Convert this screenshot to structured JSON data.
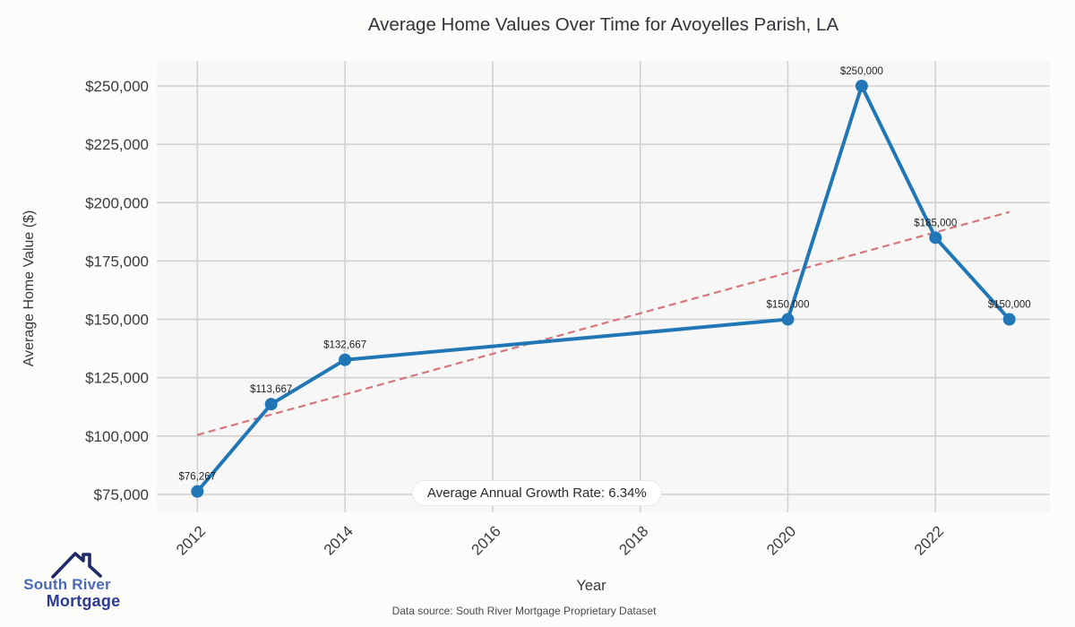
{
  "chart_data": {
    "type": "line",
    "title": "Average Home Values Over Time for Avoyelles Parish, LA",
    "xlabel": "Year",
    "ylabel": "Average Home Value ($)",
    "grid": true,
    "legend": "none",
    "xlim": [
      2011.45,
      2023.55
    ],
    "ylim": [
      67300,
      260750
    ],
    "x_ticks": {
      "values": [
        2012,
        2014,
        2016,
        2018,
        2020,
        2022
      ],
      "labels": [
        "2012",
        "2014",
        "2016",
        "2018",
        "2020",
        "2022"
      ]
    },
    "y_ticks": {
      "values": [
        75000,
        100000,
        125000,
        150000,
        175000,
        200000,
        225000,
        250000
      ],
      "labels": [
        "$75,000",
        "$100,000",
        "$125,000",
        "$150,000",
        "$175,000",
        "$200,000",
        "$225,000",
        "$250,000"
      ]
    },
    "series": [
      {
        "name": "Average Home Value",
        "x": [
          2012,
          2013,
          2014,
          2020,
          2021,
          2022,
          2023
        ],
        "y": [
          76267,
          113667,
          132667,
          150000,
          250000,
          185000,
          150000
        ],
        "point_labels": [
          "$76,267",
          "$113,667",
          "$132,667",
          "$150,000",
          "$250,000",
          "$185,000",
          "$150,000"
        ],
        "color": "#2176b5"
      }
    ],
    "trend": {
      "x": [
        2012,
        2023
      ],
      "y": [
        100500,
        196000
      ],
      "style": "dashed",
      "color": "#d5767d"
    },
    "annotation": {
      "text": "Average Annual Growth Rate: 6.34%",
      "x": 2016.6,
      "y": 75000
    },
    "colors": {
      "plot_bg": "#f7f7f7",
      "grid": "#cfcfcf",
      "line": "#2176b5",
      "trend": "#d5767d"
    }
  },
  "footer": {
    "source": "Data source: South River Mortgage Proprietary Dataset",
    "logo": {
      "line1": "South River",
      "line2": "Mortgage"
    }
  }
}
